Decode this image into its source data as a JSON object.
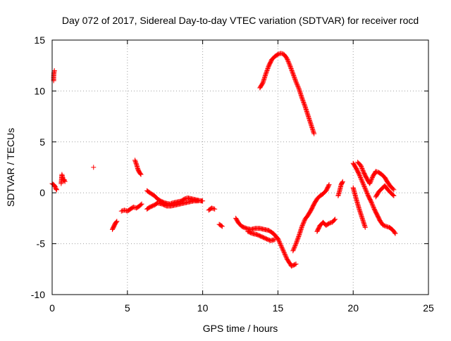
{
  "chart_data": {
    "type": "scatter",
    "title": "Day 072 of 2017, Sidereal Day-to-day VTEC variation (SDTVAR) for receiver rocd",
    "xlabel": "GPS time / hours",
    "ylabel": "SDTVAR / TECUs",
    "xlim": [
      0,
      25
    ],
    "ylim": [
      -10,
      15
    ],
    "xticks": [
      0,
      5,
      10,
      15,
      20,
      25
    ],
    "yticks": [
      -10,
      -5,
      0,
      5,
      10,
      15
    ],
    "tick_labels_x": [
      "0",
      "5",
      "10",
      "15",
      "20",
      "25"
    ],
    "tick_labels_y": [
      "-10",
      "-5",
      "0",
      "5",
      "10",
      "15"
    ],
    "grid": true,
    "marker": "+",
    "color": "#ff0000",
    "series": [
      {
        "name": "SDTVAR",
        "segments": [
          {
            "x": [
              0.1,
              0.1,
              0.12,
              0.15
            ],
            "y": [
              11.0,
              11.4,
              11.8,
              12.0
            ]
          },
          {
            "x": [
              0.0,
              0.1,
              0.2,
              0.25,
              0.3
            ],
            "y": [
              0.9,
              0.8,
              0.6,
              0.4,
              0.3
            ]
          },
          {
            "x": [
              0.6,
              0.65,
              0.7,
              0.75,
              0.8,
              0.85
            ],
            "y": [
              0.9,
              1.8,
              1.5,
              1.2,
              1.3,
              1.1
            ]
          },
          {
            "x": [
              2.75
            ],
            "y": [
              2.5
            ]
          },
          {
            "x": [
              4.0,
              4.1,
              4.2,
              4.3
            ],
            "y": [
              -3.6,
              -3.3,
              -3.0,
              -2.8
            ]
          },
          {
            "x": [
              4.6,
              4.8,
              5.0,
              5.2,
              5.4,
              5.6,
              5.8,
              5.95
            ],
            "y": [
              -1.8,
              -1.7,
              -1.8,
              -1.6,
              -1.4,
              -1.5,
              -1.3,
              -1.1
            ]
          },
          {
            "x": [
              5.5,
              5.6,
              5.7,
              5.8,
              5.9
            ],
            "y": [
              3.2,
              2.8,
              2.3,
              2.0,
              1.8
            ]
          },
          {
            "x": [
              6.3,
              6.5,
              6.8,
              7.0,
              7.2,
              7.5,
              7.8,
              8.0,
              8.3,
              8.6,
              8.8,
              9.0,
              9.3,
              9.6,
              9.9,
              10.0
            ],
            "y": [
              0.2,
              0.0,
              -0.3,
              -0.6,
              -0.8,
              -1.0,
              -1.1,
              -1.0,
              -0.9,
              -0.8,
              -0.6,
              -0.5,
              -0.6,
              -0.7,
              -0.8,
              -0.8
            ]
          },
          {
            "x": [
              6.3,
              6.5,
              6.8,
              7.0,
              7.3,
              7.6,
              7.9,
              8.2,
              8.5,
              8.8,
              9.1,
              9.4,
              9.7
            ],
            "y": [
              -1.6,
              -1.4,
              -1.2,
              -1.0,
              -1.1,
              -1.3,
              -1.3,
              -1.2,
              -1.1,
              -1.0,
              -0.9,
              -0.8,
              -0.8
            ]
          },
          {
            "x": [
              10.4,
              10.6,
              10.8
            ],
            "y": [
              -1.7,
              -1.5,
              -1.6
            ]
          },
          {
            "x": [
              11.1,
              11.3
            ],
            "y": [
              -3.1,
              -3.3
            ]
          },
          {
            "x": [
              12.2,
              12.4,
              12.6,
              12.9,
              13.2,
              13.5,
              13.8,
              14.1,
              14.4,
              14.7,
              15.0,
              15.3,
              15.6,
              15.9,
              16.2
            ],
            "y": [
              -2.5,
              -3.0,
              -3.3,
              -3.5,
              -3.6,
              -3.5,
              -3.5,
              -3.6,
              -3.7,
              -4.0,
              -4.5,
              -5.5,
              -6.5,
              -7.2,
              -7.0
            ]
          },
          {
            "x": [
              13.0,
              13.3,
              13.6,
              13.9,
              14.2,
              14.5,
              14.8
            ],
            "y": [
              -3.8,
              -4.0,
              -4.1,
              -4.3,
              -4.5,
              -4.7,
              -4.6
            ]
          },
          {
            "x": [
              13.8,
              14.0,
              14.2,
              14.4,
              14.6,
              14.8,
              15.0,
              15.2,
              15.4,
              15.6,
              15.8,
              16.0,
              16.2,
              16.4,
              16.6,
              16.8,
              17.0,
              17.2,
              17.4
            ],
            "y": [
              10.3,
              10.8,
              11.7,
              12.5,
              13.1,
              13.4,
              13.6,
              13.7,
              13.6,
              13.2,
              12.5,
              11.7,
              10.9,
              10.2,
              9.3,
              8.5,
              7.6,
              6.7,
              5.8
            ]
          },
          {
            "x": [
              16.0,
              16.2,
              16.4,
              16.6,
              16.8,
              17.0,
              17.2,
              17.4,
              17.6,
              17.8,
              18.0,
              18.2,
              18.4
            ],
            "y": [
              -5.7,
              -5.0,
              -4.2,
              -3.3,
              -2.6,
              -2.2,
              -1.7,
              -1.1,
              -0.6,
              -0.3,
              -0.1,
              0.2,
              0.8
            ]
          },
          {
            "x": [
              17.6,
              17.8,
              18.0,
              18.2,
              18.4,
              18.6,
              18.8
            ],
            "y": [
              -3.8,
              -3.2,
              -2.9,
              -3.2,
              -3.0,
              -2.9,
              -2.6
            ]
          },
          {
            "x": [
              19.0,
              19.1,
              19.2,
              19.3
            ],
            "y": [
              -0.3,
              0.2,
              0.8,
              1.1
            ]
          },
          {
            "x": [
              20.0,
              20.2,
              20.4,
              20.6,
              20.8,
              21.0,
              21.2,
              21.4,
              21.6,
              21.8,
              22.0,
              22.2,
              22.4,
              22.6,
              22.8
            ],
            "y": [
              2.9,
              2.4,
              1.8,
              1.1,
              0.4,
              -0.3,
              -0.9,
              -1.6,
              -2.2,
              -2.8,
              -3.2,
              -3.3,
              -3.4,
              -3.6,
              -4.0
            ]
          },
          {
            "x": [
              20.0,
              20.2,
              20.4,
              20.6,
              20.8
            ],
            "y": [
              0.5,
              -0.6,
              -1.6,
              -2.5,
              -3.4
            ]
          },
          {
            "x": [
              20.3,
              20.5,
              20.7,
              20.9,
              21.1,
              21.3,
              21.5,
              21.7,
              21.9,
              22.1,
              22.3,
              22.5,
              22.7
            ],
            "y": [
              3.0,
              2.7,
              2.0,
              1.4,
              0.9,
              1.6,
              2.1,
              2.0,
              1.8,
              1.5,
              1.0,
              0.6,
              0.3
            ]
          },
          {
            "x": [
              21.5,
              21.7,
              21.9,
              22.1,
              22.3,
              22.5,
              22.7
            ],
            "y": [
              -0.4,
              0.1,
              0.4,
              0.7,
              0.3,
              0.0,
              -0.3
            ]
          }
        ]
      }
    ]
  }
}
